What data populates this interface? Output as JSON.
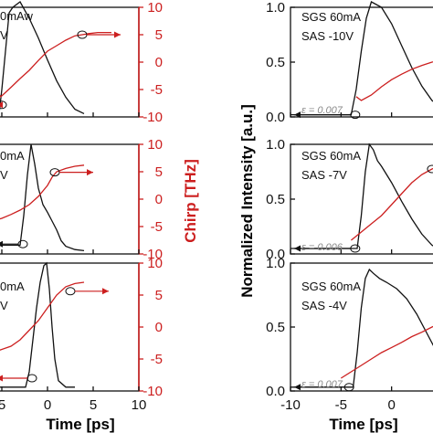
{
  "colors": {
    "black": "#111111",
    "red": "#cc1f1f",
    "eps": "#8a8a8a"
  },
  "labels": {
    "left_xlabel": "Time [ps]",
    "right_xlabel": "Time [ps]",
    "left_ylabel_right": "Chirp [THz]",
    "right_ylabel_left": "Normalized Intensity [a.u.]"
  },
  "chart_data": [
    {
      "type": "line",
      "x_range": [
        -6,
        10
      ],
      "y_range_intensity": [
        0,
        1
      ],
      "y_range_chirp": [
        -10,
        10
      ],
      "x_ticks": [
        "5",
        "0",
        "5",
        "10"
      ],
      "chirp_ticks": [
        "10",
        "5",
        "0",
        "-5",
        "-10"
      ],
      "annotation": [
        "0mAw",
        "V"
      ],
      "series": [
        {
          "axis": "intensity",
          "color": "black",
          "x": [
            -6,
            -5.3,
            -5.0,
            -4.6,
            -4.2,
            -3.8,
            -3.0,
            -2.0,
            -1.0,
            0.0,
            1.0,
            2.0,
            3.0,
            4.0
          ],
          "y": [
            0.03,
            0.03,
            0.25,
            0.6,
            0.95,
            1.0,
            1.05,
            0.9,
            0.72,
            0.52,
            0.33,
            0.18,
            0.07,
            0.03
          ]
        },
        {
          "axis": "chirp",
          "color": "red",
          "x": [
            -6,
            -5.5,
            -5.1,
            -4.0,
            -3.0,
            -2.0,
            -1.0,
            0.0,
            1.0,
            2.0,
            3.0,
            3.8,
            4.5,
            5.5,
            7.0
          ],
          "y": [
            -5.0,
            -5.6,
            -6.3,
            -4.6,
            -3.0,
            -1.5,
            0.3,
            2.0,
            3.0,
            4.0,
            4.8,
            5.0,
            5.2,
            5.4,
            5.4
          ]
        }
      ],
      "markers": [
        {
          "axis": "chirp",
          "x": -5.0,
          "y": -7.8
        },
        {
          "axis": "chirp",
          "x": 3.8,
          "y": 5.0
        }
      ]
    },
    {
      "type": "line",
      "x_range": [
        -6,
        10
      ],
      "y_range_intensity": [
        0,
        1
      ],
      "y_range_chirp": [
        -10,
        10
      ],
      "x_ticks": [
        "5",
        "0",
        "5",
        "10"
      ],
      "chirp_ticks": [
        "10",
        "5",
        "0",
        "-5",
        "-10"
      ],
      "annotation": [
        "0mA",
        "V"
      ],
      "series": [
        {
          "axis": "intensity",
          "color": "black",
          "x": [
            -6,
            -3.0,
            -2.6,
            -2.2,
            -1.8,
            -1.4,
            -1.0,
            -0.5,
            0.0,
            0.5,
            1.0,
            1.5,
            2.0,
            3.0,
            4.0
          ],
          "y": [
            0.08,
            0.08,
            0.35,
            0.72,
            1.0,
            0.82,
            0.6,
            0.45,
            0.38,
            0.3,
            0.22,
            0.12,
            0.07,
            0.04,
            0.03
          ]
        },
        {
          "axis": "chirp",
          "color": "red",
          "x": [
            -6,
            -5.0,
            -4.0,
            -3.0,
            -2.0,
            -1.0,
            0.0,
            0.5,
            1.0,
            2.0,
            3.0,
            4.0
          ],
          "y": [
            -4.0,
            -3.5,
            -2.8,
            -2.0,
            -1.0,
            0.5,
            2.5,
            4.0,
            5.0,
            5.6,
            6.0,
            6.2
          ]
        }
      ],
      "markers": [
        {
          "axis": "intensity",
          "x": -2.7,
          "y": 0.09
        },
        {
          "axis": "chirp",
          "x": 0.8,
          "y": 4.9
        }
      ]
    },
    {
      "type": "line",
      "x_range": [
        -6,
        10
      ],
      "y_range_intensity": [
        0,
        1
      ],
      "y_range_chirp": [
        -10,
        10
      ],
      "x_ticks": [
        "5",
        "0",
        "5",
        "10"
      ],
      "chirp_ticks": [
        "10",
        "5",
        "0",
        "-5",
        "-10"
      ],
      "annotation": [
        "0mA",
        "V"
      ],
      "series": [
        {
          "axis": "intensity",
          "color": "black",
          "x": [
            -6,
            -2.4,
            -2.0,
            -1.6,
            -1.2,
            -0.8,
            -0.4,
            -0.1,
            0.2,
            0.5,
            0.8,
            1.2,
            2.0,
            3.0
          ],
          "y": [
            0.03,
            0.03,
            0.15,
            0.4,
            0.65,
            0.85,
            0.98,
            1.0,
            0.8,
            0.5,
            0.25,
            0.08,
            0.03,
            0.03
          ]
        },
        {
          "axis": "chirp",
          "color": "red",
          "x": [
            -6,
            -4.0,
            -3.0,
            -2.0,
            -1.0,
            0.0,
            1.0,
            2.0,
            3.0,
            4.0
          ],
          "y": [
            -4.0,
            -3.0,
            -2.0,
            -0.5,
            1.0,
            3.0,
            5.0,
            6.3,
            6.8,
            7.0
          ]
        }
      ],
      "markers": [
        {
          "axis": "chirp",
          "x": -1.7,
          "y": -8.0
        },
        {
          "axis": "chirp",
          "x": 2.5,
          "y": 5.6
        }
      ]
    },
    {
      "type": "line",
      "x_range": [
        -10,
        5
      ],
      "y_range_intensity": [
        0,
        1
      ],
      "y_range_chirp": [
        -10,
        10
      ],
      "x_ticks": [
        "-10",
        "-5",
        "0"
      ],
      "intensity_ticks": [
        "1.0",
        "0.5",
        "0.0"
      ],
      "annotation": [
        "SGS   60mA",
        "SAS   -10V"
      ],
      "eps": "ε = 0.007",
      "series": [
        {
          "axis": "intensity",
          "color": "black",
          "x": [
            -10,
            -4.0,
            -3.5,
            -3.0,
            -2.5,
            -2.0,
            -1.0,
            0.0,
            1.0,
            2.0,
            3.0,
            4.0,
            5.0
          ],
          "y": [
            0.02,
            0.02,
            0.25,
            0.6,
            0.9,
            1.05,
            1.0,
            0.85,
            0.65,
            0.45,
            0.28,
            0.15,
            0.08
          ]
        },
        {
          "axis": "chirp",
          "color": "red",
          "x": [
            -3.5,
            -3.0,
            -2.0,
            -1.0,
            0.0,
            1.0,
            2.0,
            3.0,
            4.0,
            5.0
          ],
          "y": [
            -6.3,
            -7.0,
            -6.0,
            -4.5,
            -3.2,
            -2.2,
            -1.3,
            -0.6,
            0.0,
            0.4
          ]
        }
      ],
      "markers": [
        {
          "axis": "intensity",
          "x": -3.6,
          "y": 0.02
        }
      ]
    },
    {
      "type": "line",
      "x_range": [
        -10,
        5
      ],
      "y_range_intensity": [
        0,
        1
      ],
      "y_range_chirp": [
        -10,
        10
      ],
      "x_ticks": [
        "-10",
        "-5",
        "0"
      ],
      "intensity_ticks": [
        "1.0",
        "0.5",
        "0.0"
      ],
      "annotation": [
        "SGS   60mA",
        "SAS   -7V"
      ],
      "eps": "ε = 0.006",
      "series": [
        {
          "axis": "intensity",
          "color": "black",
          "x": [
            -10,
            -3.4,
            -3.0,
            -2.6,
            -2.2,
            -1.8,
            -1.4,
            -1.0,
            0.0,
            1.0,
            2.0,
            3.0,
            4.0,
            5.0
          ],
          "y": [
            0.05,
            0.05,
            0.35,
            0.75,
            1.0,
            0.95,
            0.85,
            0.8,
            0.65,
            0.48,
            0.32,
            0.18,
            0.08,
            0.03
          ]
        },
        {
          "axis": "chirp",
          "color": "red",
          "x": [
            -4.0,
            -3.0,
            -2.0,
            -1.0,
            0.0,
            1.0,
            2.0,
            3.0,
            4.0,
            5.0
          ],
          "y": [
            -7.5,
            -6.0,
            -4.5,
            -3.0,
            -1.0,
            1.0,
            3.0,
            4.5,
            5.5,
            6.2
          ]
        }
      ],
      "markers": [
        {
          "axis": "intensity",
          "x": -3.6,
          "y": 0.05
        },
        {
          "axis": "chirp",
          "x": 4.0,
          "y": 5.5
        }
      ]
    },
    {
      "type": "line",
      "x_range": [
        -10,
        5
      ],
      "y_range_intensity": [
        0,
        1
      ],
      "y_range_chirp": [
        -10,
        10
      ],
      "x_ticks": [
        "-10",
        "-5",
        "0"
      ],
      "intensity_ticks": [
        "1.0",
        "0.5",
        "0.0"
      ],
      "annotation": [
        "SGS   60mA",
        "SAS   -4V"
      ],
      "eps": "ε = 0.007",
      "series": [
        {
          "axis": "intensity",
          "color": "black",
          "x": [
            -10,
            -3.8,
            -3.4,
            -3.0,
            -2.6,
            -2.2,
            -1.8,
            -1.2,
            -0.5,
            0.5,
            1.5,
            2.5,
            3.5,
            4.5,
            5.0
          ],
          "y": [
            0.03,
            0.03,
            0.3,
            0.65,
            0.88,
            0.95,
            0.92,
            0.88,
            0.85,
            0.8,
            0.72,
            0.6,
            0.45,
            0.3,
            0.25
          ]
        },
        {
          "axis": "chirp",
          "color": "red",
          "x": [
            -5.0,
            -4.0,
            -3.0,
            -2.0,
            -1.0,
            0.0,
            1.0,
            2.0,
            3.0,
            4.0,
            5.0
          ],
          "y": [
            -8.0,
            -7.0,
            -6.0,
            -5.0,
            -4.0,
            -3.2,
            -2.4,
            -1.5,
            -0.8,
            0.0,
            0.8
          ]
        }
      ],
      "markers": [
        {
          "axis": "intensity",
          "x": -4.2,
          "y": 0.03
        }
      ]
    }
  ]
}
